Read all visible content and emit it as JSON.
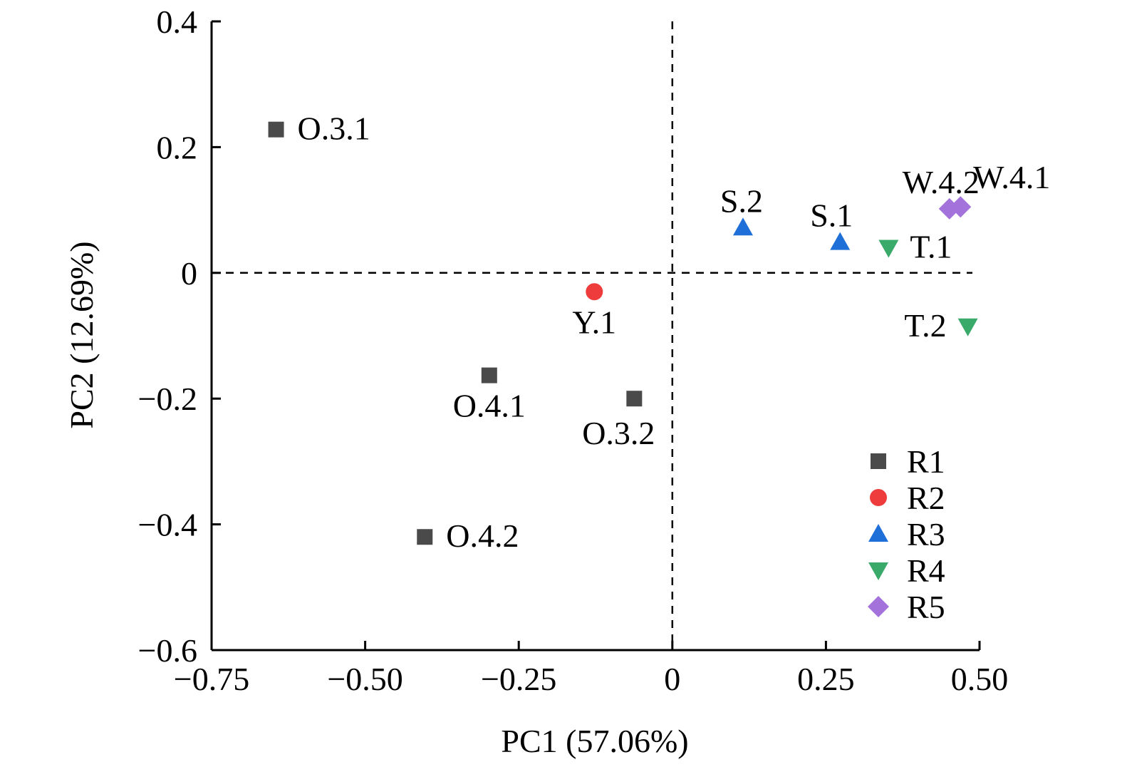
{
  "chart_data": {
    "type": "scatter",
    "xlabel": "PC1 (57.06%)",
    "ylabel": "PC2 (12.69%)",
    "xlim": [
      -0.75,
      0.5
    ],
    "ylim": [
      -0.6,
      0.4
    ],
    "x_ticks": [
      -0.75,
      -0.5,
      -0.25,
      0,
      0.25,
      0.5
    ],
    "x_tick_labels": [
      "−0.75",
      "−0.50",
      "−0.25",
      "0",
      "0.25",
      "0.50"
    ],
    "y_ticks": [
      0.4,
      0.2,
      0,
      -0.2,
      -0.4,
      -0.6
    ],
    "y_tick_labels": [
      "0.4",
      "0.2",
      "0",
      "−0.2",
      "−0.4",
      "−0.6"
    ],
    "reference_lines": {
      "x": 0,
      "y": 0,
      "style": "dashed"
    },
    "grid": false,
    "legend_placement": "bottom-right",
    "series": [
      {
        "name": "R1",
        "marker": "square",
        "color": "#4a4a4a",
        "points": [
          {
            "label": "O.3.1",
            "x": -0.645,
            "y": 0.228,
            "label_pos": "right"
          },
          {
            "label": "O.4.1",
            "x": -0.298,
            "y": -0.163,
            "label_pos": "below"
          },
          {
            "label": "O.3.2",
            "x": -0.062,
            "y": -0.2,
            "label_pos": "below-left"
          },
          {
            "label": "O.4.2",
            "x": -0.403,
            "y": -0.42,
            "label_pos": "right"
          }
        ]
      },
      {
        "name": "R2",
        "marker": "circle",
        "color": "#ee3b3b",
        "points": [
          {
            "label": "Y.1",
            "x": -0.127,
            "y": -0.03,
            "label_pos": "below"
          }
        ]
      },
      {
        "name": "R3",
        "marker": "triangle-up",
        "color": "#1f6fd8",
        "points": [
          {
            "label": "S.2",
            "x": 0.115,
            "y": 0.072,
            "label_pos": "above"
          },
          {
            "label": "S.1",
            "x": 0.273,
            "y": 0.049,
            "label_pos": "above-left"
          }
        ]
      },
      {
        "name": "R4",
        "marker": "triangle-down",
        "color": "#3aaa6a",
        "points": [
          {
            "label": "T.1",
            "x": 0.352,
            "y": 0.04,
            "label_pos": "right"
          },
          {
            "label": "T.2",
            "x": 0.481,
            "y": -0.085,
            "label_pos": "left"
          }
        ]
      },
      {
        "name": "R5",
        "marker": "diamond",
        "color": "#a373db",
        "points": [
          {
            "label": "W.4.2",
            "x": 0.451,
            "y": 0.102,
            "label_pos": "above-left"
          },
          {
            "label": "W.4.1",
            "x": 0.469,
            "y": 0.105,
            "label_pos": "above-right"
          }
        ]
      }
    ]
  }
}
